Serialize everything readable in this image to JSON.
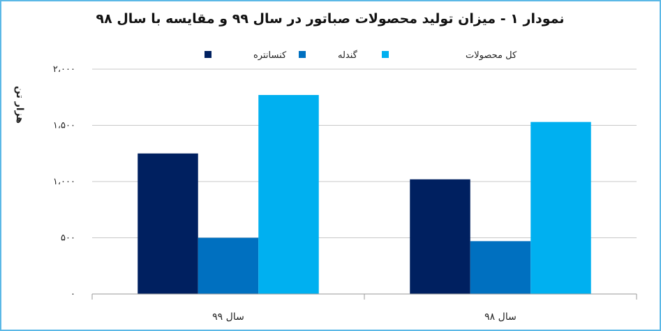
{
  "chart_data": {
    "type": "bar",
    "title": "نمودار ۱ - میزان تولید محصولات صباتور در سال ۹۹ و مقایسه با سال ۹۸",
    "ylabel": "هزار تن",
    "xlabel": "",
    "categories": [
      "سال ۹۹",
      "سال ۹۸"
    ],
    "tick_labels": [
      "۰",
      "۵۰۰",
      "۱،۰۰۰",
      "۱،۵۰۰",
      "۲،۰۰۰"
    ],
    "tick_values": [
      0,
      500,
      1000,
      1500,
      2000
    ],
    "ylim": [
      0,
      2000
    ],
    "grid": true,
    "legend_position": "top",
    "series": [
      {
        "name": "کنسانتره",
        "color": "#002060",
        "values": [
          1250,
          1020
        ]
      },
      {
        "name": "گندله",
        "color": "#0070c0",
        "values": [
          500,
          470
        ]
      },
      {
        "name": "کل محصولات",
        "color": "#00b0f0",
        "values": [
          1770,
          1530
        ]
      }
    ]
  },
  "colors": {
    "border": "#5bb8e6",
    "grid": "#c8c8c8",
    "axis": "#9a9a9a"
  }
}
